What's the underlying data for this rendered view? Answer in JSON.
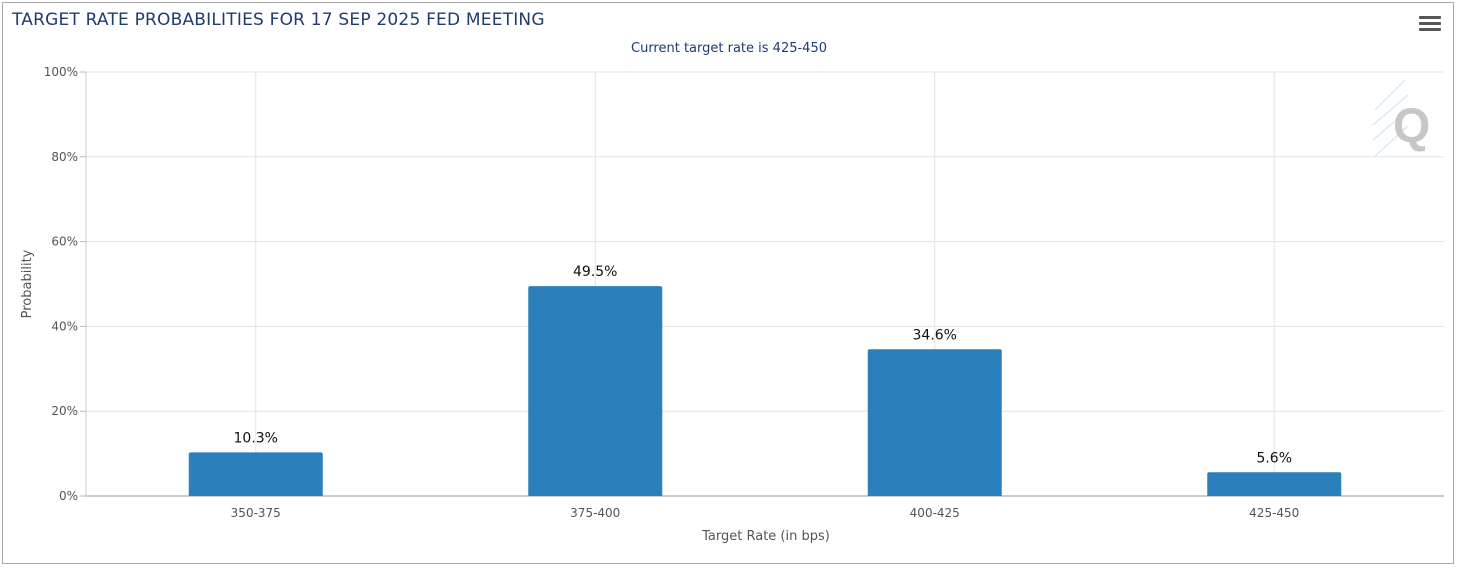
{
  "header": {
    "title": "TARGET RATE PROBABILITIES FOR 17 SEP 2025 FED MEETING",
    "subtitle": "Current target rate is 425-450"
  },
  "icons": {
    "menu": "hamburger-menu-icon",
    "watermark": "quikstrike-q-logo"
  },
  "chart_data": {
    "type": "bar",
    "title": "TARGET RATE PROBABILITIES FOR 17 SEP 2025 FED MEETING",
    "subtitle": "Current target rate is 425-450",
    "categories": [
      "350-375",
      "375-400",
      "400-425",
      "425-450"
    ],
    "values": [
      10.3,
      49.5,
      34.6,
      5.6
    ],
    "data_labels": [
      "10.3%",
      "49.5%",
      "34.6%",
      "5.6%"
    ],
    "xlabel": "Target Rate (in bps)",
    "ylabel": "Probability",
    "ylim": [
      0,
      100
    ],
    "yticks": [
      0,
      20,
      40,
      60,
      80,
      100
    ],
    "ytick_labels": [
      "0%",
      "20%",
      "40%",
      "60%",
      "80%",
      "100%"
    ],
    "grid": true,
    "bar_color": "#2b7fba"
  }
}
